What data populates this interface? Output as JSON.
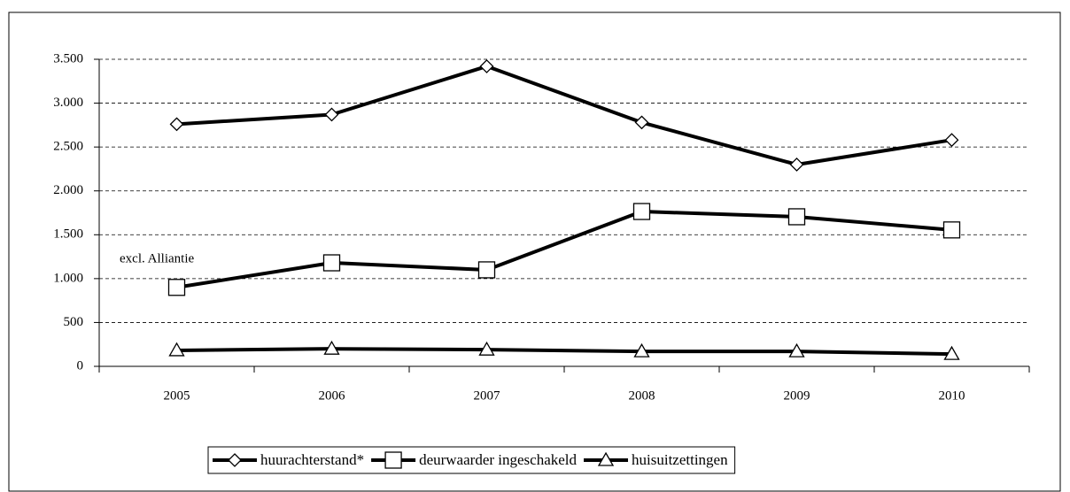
{
  "chart_data": {
    "type": "line",
    "categories": [
      "2005",
      "2006",
      "2007",
      "2008",
      "2009",
      "2010"
    ],
    "series": [
      {
        "name": "huurachterstand*",
        "color": "#000000",
        "marker": "diamond",
        "values": [
          2760,
          2870,
          3420,
          2780,
          2300,
          2580
        ]
      },
      {
        "name": "deurwaarder ingeschakeld",
        "color": "#000000",
        "marker": "square",
        "values": [
          900,
          1180,
          1100,
          1765,
          1705,
          1555
        ]
      },
      {
        "name": "huisuitzettingen",
        "color": "#000000",
        "marker": "triangle",
        "values": [
          182,
          200,
          190,
          170,
          170,
          140
        ]
      }
    ],
    "annotation": "excl. Alliantie",
    "ylim": [
      0,
      3500
    ],
    "yticks": [
      0,
      500,
      {
        "value": 1000,
        "label": "1.000"
      },
      {
        "value": 1500,
        "label": "1.500"
      },
      {
        "value": 2000,
        "label": "2.000"
      },
      {
        "value": 2500,
        "label": "2.500"
      },
      {
        "value": 3000,
        "label": "3.000"
      },
      {
        "value": 3500,
        "label": "3.500"
      }
    ],
    "grid": true,
    "legend": "bottom"
  }
}
